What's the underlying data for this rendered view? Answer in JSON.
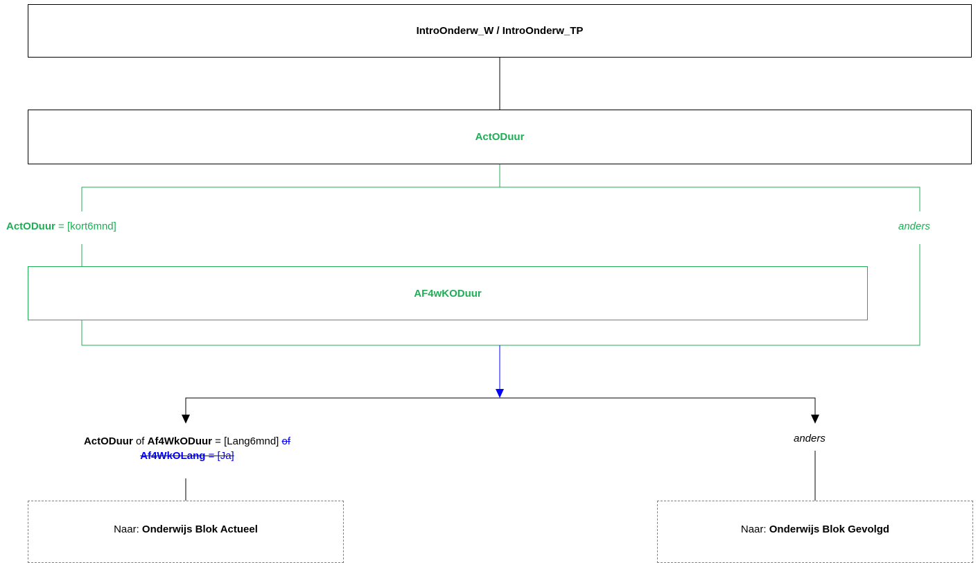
{
  "nodes": {
    "intro": "IntroOnderw_W / IntroOnderw_TP",
    "actoduur": "ActODuur",
    "af4wkoduur": "AF4wKODuur"
  },
  "branch_top": {
    "left_var": "ActODuur",
    "left_op": " = ",
    "left_value": "[kort6mnd]",
    "right": "anders"
  },
  "branch_bottom": {
    "left_var1": "ActODuur",
    "left_of1": " of ",
    "left_var2": "Af4WkODuur",
    "left_op": " = ",
    "left_value": "[Lang6mnd] ",
    "left_struck_of": "of",
    "left_struck_var": "Af4WkOLang",
    "left_struck_op": " = ",
    "left_struck_value": "[Ja]",
    "right": "anders"
  },
  "targets": {
    "left_prefix": "Naar: ",
    "left_target": "Onderwijs Blok Actueel",
    "right_prefix": "Naar: ",
    "right_target": "Onderwijs Blok Gevolgd"
  },
  "colors": {
    "black": "#000000",
    "green": "#1fae55",
    "blue": "#0000ff",
    "dashed": "#7f7f7f"
  }
}
